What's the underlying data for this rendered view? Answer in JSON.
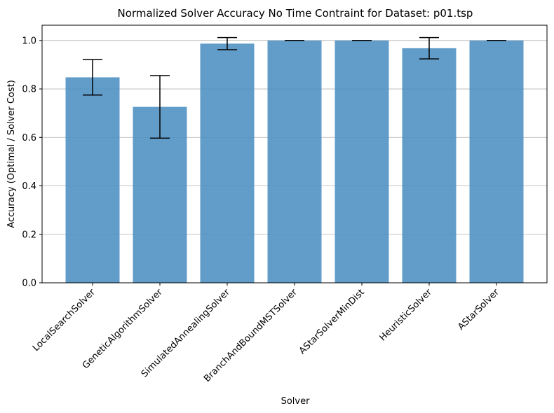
{
  "chart_data": {
    "type": "bar",
    "title": "Normalized Solver Accuracy No Time Contraint for Dataset: p01.tsp",
    "xlabel": "Solver",
    "ylabel": "Accuracy (Optimal / Solver Cost)",
    "categories": [
      "LocalSearchSolver",
      "GeneticAlgorithmSolver",
      "SimulatedAnnealingSolver",
      "BranchAndBoundMSTSolver",
      "AStarSolverMinDist",
      "HeuristicSolver",
      "AStarSolver"
    ],
    "values": [
      0.848,
      0.726,
      0.987,
      1.0,
      1.0,
      0.968,
      1.0
    ],
    "errors": [
      0.073,
      0.129,
      0.025,
      0.0,
      0.0,
      0.044,
      0.0
    ],
    "ylim": [
      0,
      1.063
    ],
    "yticks": [
      "0.0",
      "0.2",
      "0.4",
      "0.6",
      "0.8",
      "1.0"
    ],
    "grid": "y",
    "bar_color": "#4c8fc3"
  }
}
